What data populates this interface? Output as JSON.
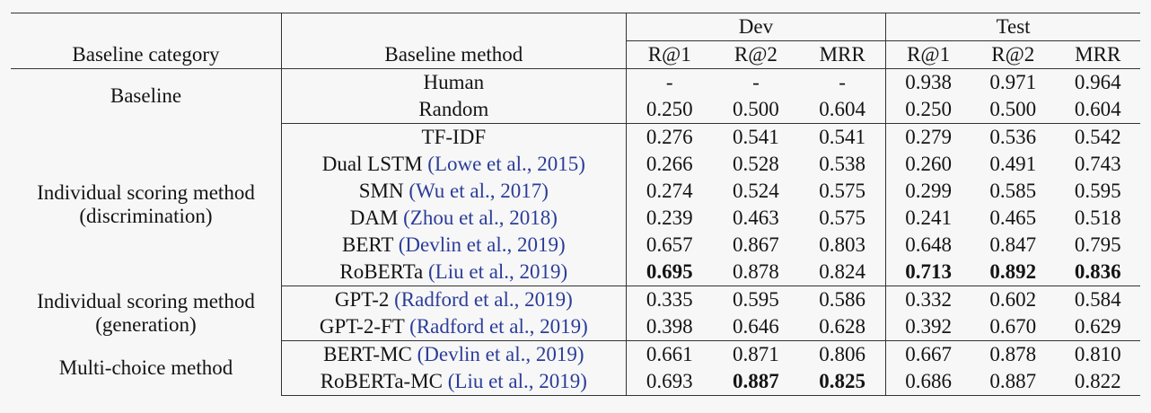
{
  "header": {
    "group_dev": "Dev",
    "group_test": "Test",
    "col_category": "Baseline category",
    "col_method": "Baseline method",
    "col_dev": [
      "R@1",
      "R@2",
      "MRR"
    ],
    "col_test": [
      "R@1",
      "R@2",
      "MRR"
    ]
  },
  "groups": [
    {
      "category": [
        "Baseline"
      ],
      "rows": [
        {
          "method": "Human",
          "cite": "",
          "dev": [
            "-",
            "-",
            "-"
          ],
          "test": [
            "0.938",
            "0.971",
            "0.964"
          ]
        },
        {
          "method": "Random",
          "cite": "",
          "dev": [
            "0.250",
            "0.500",
            "0.604"
          ],
          "test": [
            "0.250",
            "0.500",
            "0.604"
          ]
        }
      ]
    },
    {
      "category": [
        "Individual scoring method",
        "(discrimination)"
      ],
      "rows": [
        {
          "method": "TF-IDF",
          "cite": "",
          "dev": [
            "0.276",
            "0.541",
            "0.541"
          ],
          "test": [
            "0.279",
            "0.536",
            "0.542"
          ]
        },
        {
          "method": "Dual LSTM ",
          "cite": "(Lowe et al., 2015)",
          "dev": [
            "0.266",
            "0.528",
            "0.538"
          ],
          "test": [
            "0.260",
            "0.491",
            "0.743"
          ]
        },
        {
          "method": "SMN ",
          "cite": "(Wu et al., 2017)",
          "dev": [
            "0.274",
            "0.524",
            "0.575"
          ],
          "test": [
            "0.299",
            "0.585",
            "0.595"
          ]
        },
        {
          "method": "DAM ",
          "cite": "(Zhou et al., 2018)",
          "dev": [
            "0.239",
            "0.463",
            "0.575"
          ],
          "test": [
            "0.241",
            "0.465",
            "0.518"
          ]
        },
        {
          "method": "BERT ",
          "cite": "(Devlin et al., 2019)",
          "dev": [
            "0.657",
            "0.867",
            "0.803"
          ],
          "test": [
            "0.648",
            "0.847",
            "0.795"
          ]
        },
        {
          "method": "RoBERTa ",
          "cite": "(Liu et al., 2019)",
          "dev": [
            "0.695",
            "0.878",
            "0.824"
          ],
          "test": [
            "0.713",
            "0.892",
            "0.836"
          ],
          "bold_dev": [
            0
          ],
          "bold_test": [
            0,
            1,
            2
          ]
        }
      ]
    },
    {
      "category": [
        "Individual scoring method",
        "(generation)"
      ],
      "rows": [
        {
          "method": "GPT-2 ",
          "cite": "(Radford et al., 2019)",
          "dev": [
            "0.335",
            "0.595",
            "0.586"
          ],
          "test": [
            "0.332",
            "0.602",
            "0.584"
          ]
        },
        {
          "method": "GPT-2-FT ",
          "cite": "(Radford et al., 2019)",
          "dev": [
            "0.398",
            "0.646",
            "0.628"
          ],
          "test": [
            "0.392",
            "0.670",
            "0.629"
          ]
        }
      ]
    },
    {
      "category": [
        "Multi-choice method"
      ],
      "rows": [
        {
          "method": "BERT-MC ",
          "cite": "(Devlin et al., 2019)",
          "dev": [
            "0.661",
            "0.871",
            "0.806"
          ],
          "test": [
            "0.667",
            "0.878",
            "0.810"
          ]
        },
        {
          "method": "RoBERTa-MC ",
          "cite": "(Liu et al., 2019)",
          "dev": [
            "0.693",
            "0.887",
            "0.825"
          ],
          "test": [
            "0.686",
            "0.887",
            "0.822"
          ],
          "bold_dev": [
            1,
            2
          ],
          "bold_test": []
        }
      ]
    }
  ]
}
